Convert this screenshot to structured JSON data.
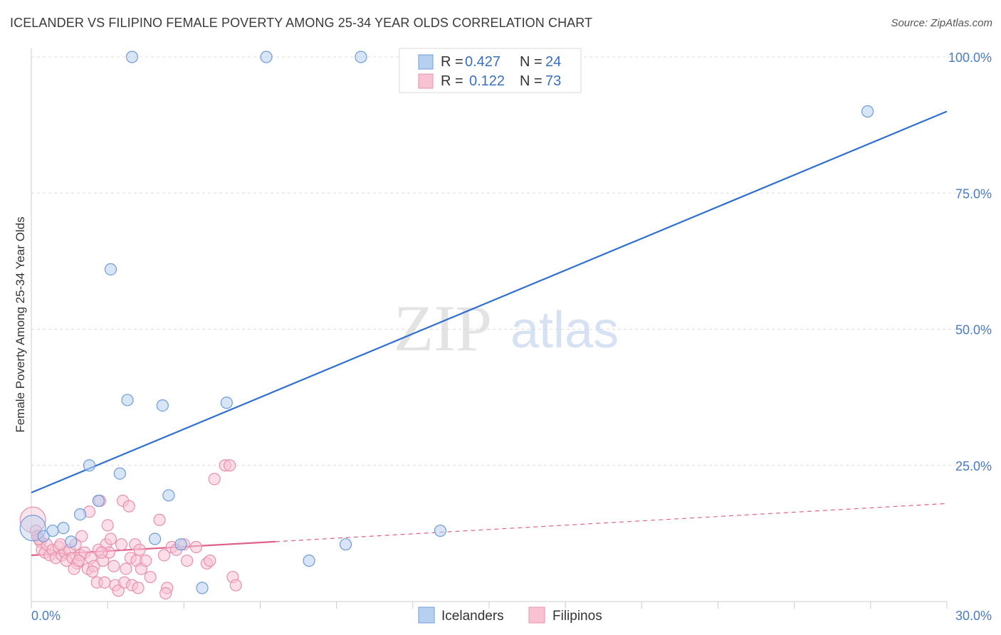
{
  "title": "ICELANDER VS FILIPINO FEMALE POVERTY AMONG 25-34 YEAR OLDS CORRELATION CHART",
  "source": "Source: ZipAtlas.com",
  "watermark": {
    "zip": "ZIP",
    "atlas": "atlas"
  },
  "legend": {
    "icelanders": {
      "r_label": "R =",
      "r_value": "0.427",
      "n_label": "N =",
      "n_value": "24"
    },
    "filipinos": {
      "r_label": "R =",
      "r_value": "0.122",
      "n_label": "N =",
      "n_value": "73"
    }
  },
  "bottom_legend": {
    "icelanders": "Icelanders",
    "filipinos": "Filipinos"
  },
  "colors": {
    "icelanders_fill": "#b7d0f0",
    "icelanders_stroke": "#6f9bd8",
    "icelanders_line": "#2f6fd0",
    "filipinos_fill": "#f7c3d3",
    "filipinos_stroke": "#e990ad",
    "filipinos_line": "#e0608c",
    "tick_label": "#4a7ac9",
    "grid": "#dddddd"
  },
  "chart_data": {
    "type": "scatter",
    "title": "ICELANDER VS FILIPINO FEMALE POVERTY AMONG 25-34 YEAR OLDS CORRELATION CHART",
    "xlabel": "",
    "ylabel": "Female Poverty Among 25-34 Year Olds",
    "xlim": [
      0,
      30
    ],
    "ylim": [
      0,
      100
    ],
    "x_tick_labels": [
      {
        "value": 0,
        "label": "0.0%"
      },
      {
        "value": 30,
        "label": "30.0%"
      }
    ],
    "y_tick_labels": [
      {
        "value": 25,
        "label": "25.0%"
      },
      {
        "value": 50,
        "label": "50.0%"
      },
      {
        "value": 75,
        "label": "75.0%"
      },
      {
        "value": 100,
        "label": "100.0%"
      }
    ],
    "legend_position": "top-center",
    "series": [
      {
        "name": "Icelanders",
        "r": 0.427,
        "n": 24,
        "points": [
          {
            "x": 0.05,
            "y": 13.5,
            "big": true
          },
          {
            "x": 0.4,
            "y": 12.0
          },
          {
            "x": 0.7,
            "y": 13.0
          },
          {
            "x": 1.05,
            "y": 13.5
          },
          {
            "x": 1.3,
            "y": 11.0
          },
          {
            "x": 1.6,
            "y": 16.0
          },
          {
            "x": 1.9,
            "y": 25.0
          },
          {
            "x": 2.2,
            "y": 18.5
          },
          {
            "x": 2.6,
            "y": 61.0
          },
          {
            "x": 2.9,
            "y": 23.5
          },
          {
            "x": 3.15,
            "y": 37.0
          },
          {
            "x": 3.3,
            "y": 100.0
          },
          {
            "x": 4.05,
            "y": 11.5
          },
          {
            "x": 4.3,
            "y": 36.0
          },
          {
            "x": 4.5,
            "y": 19.5
          },
          {
            "x": 4.9,
            "y": 10.5
          },
          {
            "x": 5.6,
            "y": 2.5
          },
          {
            "x": 6.4,
            "y": 36.5
          },
          {
            "x": 7.7,
            "y": 100.0
          },
          {
            "x": 9.1,
            "y": 7.5
          },
          {
            "x": 10.3,
            "y": 10.5
          },
          {
            "x": 10.8,
            "y": 100.0
          },
          {
            "x": 13.4,
            "y": 13.0
          },
          {
            "x": 27.4,
            "y": 90.0
          }
        ],
        "trend": {
          "x": [
            0,
            30
          ],
          "y": [
            20.0,
            90.0
          ],
          "style": "solid"
        }
      },
      {
        "name": "Filipinos",
        "r": 0.122,
        "n": 73,
        "points": [
          {
            "x": 0.05,
            "y": 15.0,
            "big": true
          },
          {
            "x": 0.15,
            "y": 13.0
          },
          {
            "x": 0.2,
            "y": 12.0
          },
          {
            "x": 0.3,
            "y": 11.0
          },
          {
            "x": 0.35,
            "y": 9.5
          },
          {
            "x": 0.45,
            "y": 9.0
          },
          {
            "x": 0.5,
            "y": 10.5
          },
          {
            "x": 0.6,
            "y": 8.5
          },
          {
            "x": 0.7,
            "y": 9.5
          },
          {
            "x": 0.8,
            "y": 8.0
          },
          {
            "x": 0.9,
            "y": 10.0
          },
          {
            "x": 1.0,
            "y": 8.5
          },
          {
            "x": 1.1,
            "y": 9.0
          },
          {
            "x": 1.15,
            "y": 7.5
          },
          {
            "x": 1.25,
            "y": 9.5
          },
          {
            "x": 1.35,
            "y": 8.0
          },
          {
            "x": 1.45,
            "y": 10.5
          },
          {
            "x": 1.5,
            "y": 7.0
          },
          {
            "x": 1.6,
            "y": 8.5
          },
          {
            "x": 1.65,
            "y": 12.0
          },
          {
            "x": 1.75,
            "y": 9.0
          },
          {
            "x": 1.85,
            "y": 6.0
          },
          {
            "x": 1.9,
            "y": 16.5
          },
          {
            "x": 1.95,
            "y": 8.0
          },
          {
            "x": 2.05,
            "y": 6.5
          },
          {
            "x": 2.15,
            "y": 3.5
          },
          {
            "x": 2.2,
            "y": 9.5
          },
          {
            "x": 2.25,
            "y": 18.5
          },
          {
            "x": 2.35,
            "y": 7.5
          },
          {
            "x": 2.4,
            "y": 3.5
          },
          {
            "x": 2.45,
            "y": 10.5
          },
          {
            "x": 2.5,
            "y": 14.0
          },
          {
            "x": 2.55,
            "y": 9.0
          },
          {
            "x": 2.6,
            "y": 11.5
          },
          {
            "x": 2.7,
            "y": 6.5
          },
          {
            "x": 2.75,
            "y": 3.0
          },
          {
            "x": 2.85,
            "y": 2.0
          },
          {
            "x": 2.95,
            "y": 10.5
          },
          {
            "x": 3.0,
            "y": 18.5
          },
          {
            "x": 3.05,
            "y": 3.5
          },
          {
            "x": 3.1,
            "y": 6.0
          },
          {
            "x": 3.2,
            "y": 17.5
          },
          {
            "x": 3.25,
            "y": 8.0
          },
          {
            "x": 3.3,
            "y": 3.0
          },
          {
            "x": 3.4,
            "y": 10.5
          },
          {
            "x": 3.45,
            "y": 7.5
          },
          {
            "x": 3.55,
            "y": 9.5
          },
          {
            "x": 3.6,
            "y": 6.0
          },
          {
            "x": 3.75,
            "y": 7.5
          },
          {
            "x": 3.9,
            "y": 4.5
          },
          {
            "x": 4.2,
            "y": 15.0
          },
          {
            "x": 4.35,
            "y": 8.5
          },
          {
            "x": 4.45,
            "y": 2.5
          },
          {
            "x": 4.6,
            "y": 10.0
          },
          {
            "x": 4.75,
            "y": 9.5
          },
          {
            "x": 5.0,
            "y": 10.5
          },
          {
            "x": 5.1,
            "y": 7.5
          },
          {
            "x": 5.4,
            "y": 10.0
          },
          {
            "x": 5.75,
            "y": 7.0
          },
          {
            "x": 5.85,
            "y": 7.5
          },
          {
            "x": 6.0,
            "y": 22.5
          },
          {
            "x": 6.35,
            "y": 25.0
          },
          {
            "x": 6.5,
            "y": 25.0
          },
          {
            "x": 6.6,
            "y": 4.5
          },
          {
            "x": 6.7,
            "y": 3.0
          },
          {
            "x": 1.4,
            "y": 6.0
          },
          {
            "x": 0.95,
            "y": 10.5
          },
          {
            "x": 2.0,
            "y": 5.5
          },
          {
            "x": 3.5,
            "y": 2.5
          },
          {
            "x": 4.4,
            "y": 1.5
          },
          {
            "x": 0.25,
            "y": 11.5
          },
          {
            "x": 1.55,
            "y": 7.5
          },
          {
            "x": 2.3,
            "y": 9.0
          }
        ],
        "trend": {
          "x": [
            0,
            8
          ],
          "y": [
            8.5,
            11.0
          ],
          "style": "solid",
          "dashed_extension": {
            "x": [
              8,
              30
            ],
            "y": [
              11.0,
              18.0
            ]
          }
        }
      }
    ]
  }
}
